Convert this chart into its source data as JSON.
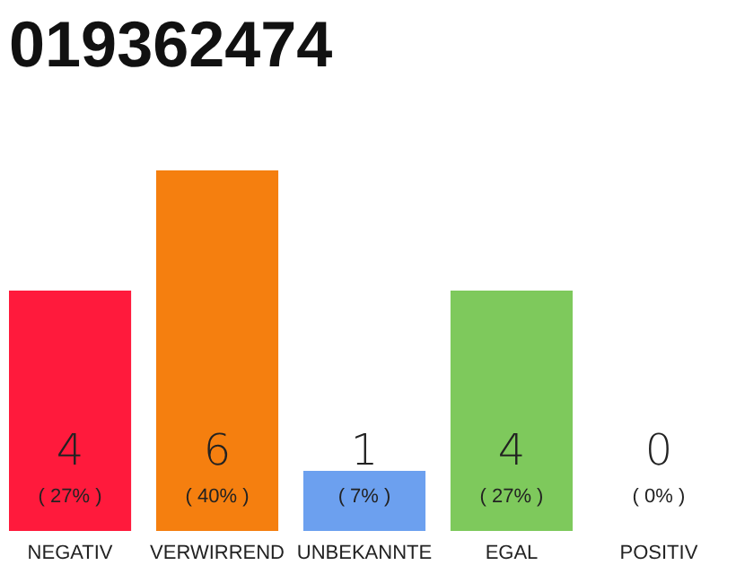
{
  "chart_data": {
    "type": "bar",
    "title": "019362474",
    "categories": [
      "NEGATIV",
      "VERWIRREND",
      "UNBEKANNTE",
      "EGAL",
      "POSITIV"
    ],
    "values": [
      4,
      6,
      1,
      4,
      0
    ],
    "colors": [
      "#ff1a3c",
      "#f57f0f",
      "#6ca0ef",
      "#7ec95c",
      "#cccccc"
    ],
    "data_labels": true,
    "annotations": [
      {
        "text": "( 27% )",
        "x": "NEGATIV",
        "y": 0
      },
      {
        "text": "( 40% )",
        "x": "VERWIRREND",
        "y": 0
      },
      {
        "text": "( 7% )",
        "x": "UNBEKANNTE",
        "y": 0
      },
      {
        "text": "( 27% )",
        "x": "EGAL",
        "y": 0
      },
      {
        "text": "( 0% )",
        "x": "POSITIV",
        "y": 0
      }
    ],
    "tick_labels": "x",
    "grid": false
  }
}
